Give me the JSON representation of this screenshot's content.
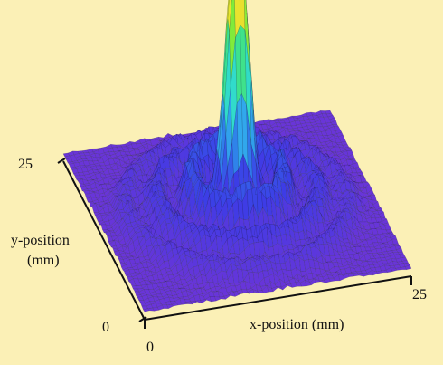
{
  "colors": {
    "background": "#FBF0B6",
    "axis": "#111111",
    "mesh": "#1a1a2a",
    "colormap": [
      "#6A35D8",
      "#3C3CE6",
      "#2F7FEA",
      "#33D6EE",
      "#2FE0A0",
      "#7CEB3A",
      "#E8E62E",
      "#F5A22A",
      "#E0561E"
    ]
  },
  "chart_data": {
    "type": "surface",
    "title": "",
    "xlabel": "x-position (mm)",
    "ylabel_line1": "y-position",
    "ylabel_line2": "(mm)",
    "xlim": [
      0,
      25
    ],
    "ylim": [
      0,
      25
    ],
    "x_ticks": [
      "0",
      "25"
    ],
    "y_ticks": [
      "0",
      "25"
    ],
    "grid": false,
    "legend": "none",
    "z_max": 1.0,
    "peak_center_mm": [
      12.5,
      12.5
    ],
    "central_peak_width_mm": 1.4,
    "rings": [
      {
        "radius_mm": 4.2,
        "height": 0.16,
        "width_mm": 1.0
      },
      {
        "radius_mm": 7.3,
        "height": 0.09,
        "width_mm": 1.1
      },
      {
        "radius_mm": 10.0,
        "height": 0.05,
        "width_mm": 1.0
      }
    ],
    "noise": 0.03
  }
}
